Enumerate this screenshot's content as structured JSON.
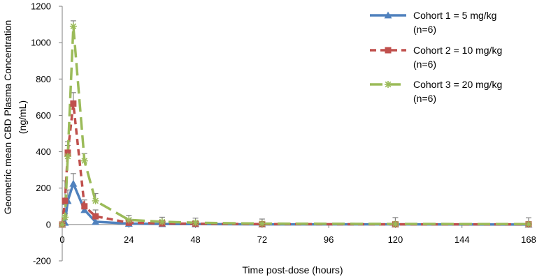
{
  "chart_data": {
    "type": "line",
    "title": "",
    "xlabel": "Time post-dose (hours)",
    "ylabel_lines": [
      "Geometric mean CBD Plasma Concentration",
      "(ng/mL)"
    ],
    "xlim": [
      0,
      168
    ],
    "ylim": [
      -200,
      1200
    ],
    "xticks": [
      0,
      24,
      48,
      72,
      96,
      120,
      144,
      168
    ],
    "yticks": [
      -200,
      0,
      200,
      400,
      600,
      800,
      1000,
      1200
    ],
    "grid": false,
    "legend_position": "top-right",
    "series": [
      {
        "name_lines": [
          "Cohort 1 = 5 mg/kg",
          "(n=6)"
        ],
        "color": "#4f81bd",
        "dash": "solid",
        "marker": "triangle",
        "x": [
          0,
          1,
          2,
          4,
          8,
          12,
          24,
          36,
          48,
          72,
          120,
          168
        ],
        "y": [
          0,
          10,
          130,
          225,
          80,
          15,
          5,
          3,
          2,
          1,
          1,
          0
        ],
        "err": [
          0,
          50,
          60,
          55,
          30,
          20,
          15,
          12,
          10,
          10,
          10,
          10
        ]
      },
      {
        "name_lines": [
          "Cohort 2 = 10 mg/kg",
          "(n=6)"
        ],
        "color": "#c0504d",
        "dash": "dash",
        "marker": "square",
        "x": [
          0,
          1,
          2,
          4,
          8,
          12,
          24,
          36,
          48,
          72,
          120,
          168
        ],
        "y": [
          0,
          130,
          395,
          665,
          100,
          45,
          10,
          6,
          4,
          2,
          1,
          1
        ],
        "err": [
          0,
          110,
          60,
          60,
          35,
          35,
          20,
          15,
          12,
          12,
          10,
          10
        ]
      },
      {
        "name_lines": [
          "Cohort 3 = 20 mg/kg",
          "(n=6)"
        ],
        "color": "#9bbb59",
        "dash": "longdash",
        "marker": "star",
        "x": [
          0,
          1,
          2,
          4,
          8,
          12,
          24,
          36,
          48,
          72,
          120,
          168
        ],
        "y": [
          0,
          40,
          375,
          1090,
          350,
          130,
          25,
          15,
          10,
          5,
          3,
          2
        ],
        "err": [
          0,
          70,
          60,
          30,
          40,
          40,
          25,
          25,
          25,
          25,
          35,
          35
        ]
      }
    ]
  }
}
